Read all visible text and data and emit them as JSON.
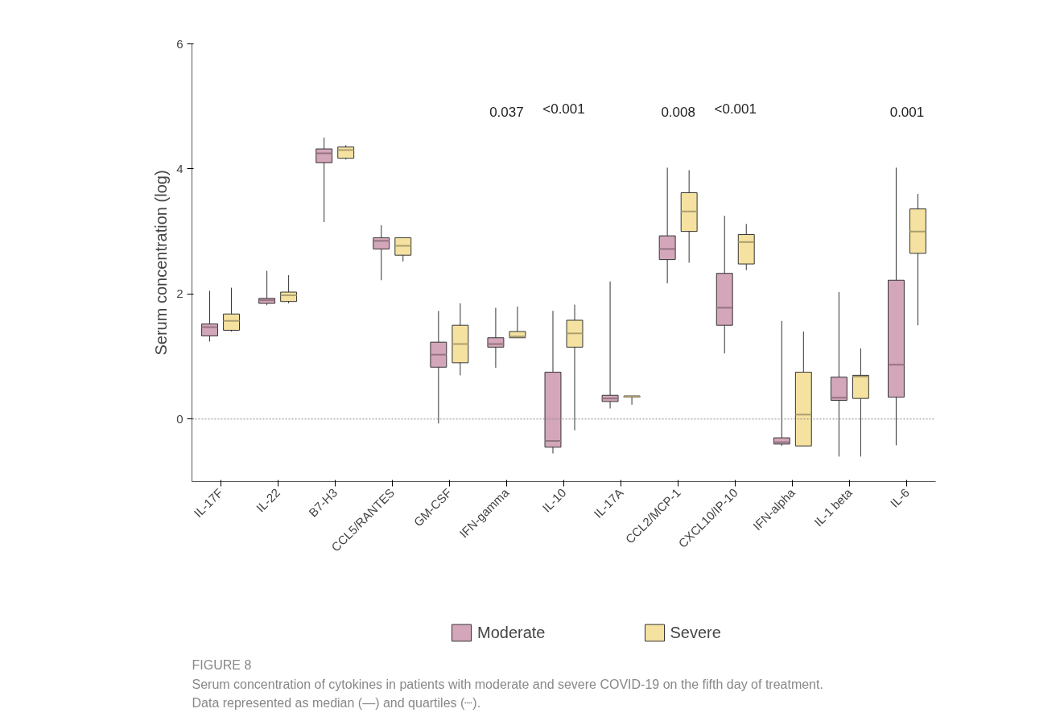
{
  "chart_data": {
    "type": "box",
    "ylabel": "Serum concentration (log)",
    "categories": [
      "IL-17F",
      "IL-22",
      "B7-H3",
      "CCL5/RANTES",
      "GM-CSF",
      "IFN-gamma",
      "IL-10",
      "IL-17A",
      "CCL2/MCP-1",
      "CXCL10/IP-10",
      "IFN-alpha",
      "IL-1 beta",
      "IL-6"
    ],
    "series": [
      {
        "name": "Moderate",
        "color": "#d4a6ba",
        "boxes": [
          {
            "low": 1.24,
            "q1": 1.33,
            "median": 1.47,
            "q3": 1.52,
            "high": 2.05
          },
          {
            "low": 1.82,
            "q1": 1.85,
            "median": 1.9,
            "q3": 1.93,
            "high": 2.37
          },
          {
            "low": 3.15,
            "q1": 4.1,
            "median": 4.25,
            "q3": 4.32,
            "high": 4.5
          },
          {
            "low": 2.22,
            "q1": 2.72,
            "median": 2.85,
            "q3": 2.9,
            "high": 3.1
          },
          {
            "low": -0.07,
            "q1": 0.83,
            "median": 1.03,
            "q3": 1.23,
            "high": 1.73
          },
          {
            "low": 0.82,
            "q1": 1.15,
            "median": 1.2,
            "q3": 1.3,
            "high": 1.78
          },
          {
            "low": -0.55,
            "q1": -0.45,
            "median": -0.35,
            "q3": 0.75,
            "high": 1.73
          },
          {
            "low": 0.17,
            "q1": 0.28,
            "median": 0.33,
            "q3": 0.38,
            "high": 2.2
          },
          {
            "low": 2.17,
            "q1": 2.55,
            "median": 2.72,
            "q3": 2.93,
            "high": 4.02
          },
          {
            "low": 1.05,
            "q1": 1.5,
            "median": 1.78,
            "q3": 2.33,
            "high": 3.25
          },
          {
            "low": -0.43,
            "q1": -0.4,
            "median": -0.37,
            "q3": -0.3,
            "high": 1.57
          },
          {
            "low": -0.6,
            "q1": 0.3,
            "median": 0.34,
            "q3": 0.67,
            "high": 2.03
          },
          {
            "low": -0.42,
            "q1": 0.35,
            "median": 0.87,
            "q3": 2.22,
            "high": 4.02
          }
        ]
      },
      {
        "name": "Severe",
        "color": "#f5e2a0",
        "boxes": [
          {
            "low": 1.4,
            "q1": 1.42,
            "median": 1.57,
            "q3": 1.68,
            "high": 2.1
          },
          {
            "low": 1.85,
            "q1": 1.88,
            "median": 1.98,
            "q3": 2.03,
            "high": 2.3
          },
          {
            "low": 4.15,
            "q1": 4.17,
            "median": 4.3,
            "q3": 4.35,
            "high": 4.38
          },
          {
            "low": 2.52,
            "q1": 2.62,
            "median": 2.77,
            "q3": 2.9,
            "high": 2.9
          },
          {
            "low": 0.7,
            "q1": 0.9,
            "median": 1.2,
            "q3": 1.5,
            "high": 1.85
          },
          {
            "low": 1.3,
            "q1": 1.3,
            "median": 1.32,
            "q3": 1.4,
            "high": 1.8
          },
          {
            "low": -0.18,
            "q1": 1.15,
            "median": 1.37,
            "q3": 1.58,
            "high": 1.83
          },
          {
            "low": 0.23,
            "q1": 0.35,
            "median": 0.36,
            "q3": 0.37,
            "high": 0.37
          },
          {
            "low": 2.5,
            "q1": 3.0,
            "median": 3.32,
            "q3": 3.62,
            "high": 3.98
          },
          {
            "low": 2.38,
            "q1": 2.48,
            "median": 2.83,
            "q3": 2.95,
            "high": 3.12
          },
          {
            "low": -0.43,
            "q1": -0.43,
            "median": 0.07,
            "q3": 0.75,
            "high": 1.4
          },
          {
            "low": -0.6,
            "q1": 0.33,
            "median": 0.68,
            "q3": 0.7,
            "high": 1.13
          },
          {
            "low": 1.5,
            "q1": 2.65,
            "median": 3.0,
            "q3": 3.36,
            "high": 3.6
          }
        ]
      }
    ],
    "ylim": [
      -1,
      6
    ],
    "yticks": [
      0,
      2,
      4,
      6
    ],
    "ref_lines": [
      {
        "axis": "y",
        "value": 0,
        "line_style": "dotted",
        "color": "#888888"
      }
    ],
    "grid": false,
    "legend": "bottom",
    "annotations": [
      "0.037",
      "<0.001",
      "0.008",
      "<0.001",
      "0.001",
      "FIGURE 8",
      "Serum concentration of cytokines in patients with moderate and severe COVID-19 on the fifth day of treatment. Data represented as median (—) and quartiles (┈)."
    ]
  }
}
